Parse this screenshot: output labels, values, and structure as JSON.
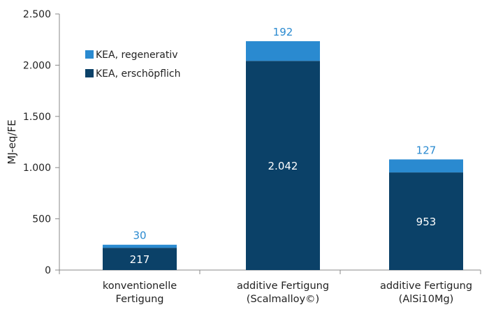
{
  "chart_data": {
    "type": "bar",
    "stacked": true,
    "categories": [
      [
        "konventionelle",
        "Fertigung"
      ],
      [
        "additive Fertigung",
        "(Scalmalloy©)"
      ],
      [
        "additive Fertigung",
        "(AlSi10Mg)"
      ]
    ],
    "series": [
      {
        "name": "KEA, erschöpflich",
        "values": [
          217,
          2042,
          953
        ],
        "data_labels": [
          "217",
          "2.042",
          "953"
        ],
        "color": "#0b4168"
      },
      {
        "name": "KEA, regenerativ",
        "values": [
          30,
          192,
          127
        ],
        "data_labels": [
          "30",
          "192",
          "127"
        ],
        "color": "#2a8ad0"
      }
    ],
    "ylabel": "MJ-eq/FE",
    "xlabel": "",
    "ylim": [
      0,
      2500
    ],
    "yticks": [
      0,
      500,
      1000,
      1500,
      2000,
      2500
    ],
    "ytick_labels": [
      "0",
      "500",
      "1.000",
      "1.500",
      "2.000",
      "2.500"
    ],
    "legend_placement": "top-left",
    "legend_order": [
      "KEA, regenerativ",
      "KEA, erschöpflich"
    ],
    "grid": false,
    "colors": {
      "axis": "#888888",
      "top_label": "#2a8ad0",
      "inner_label": "#ffffff"
    }
  }
}
